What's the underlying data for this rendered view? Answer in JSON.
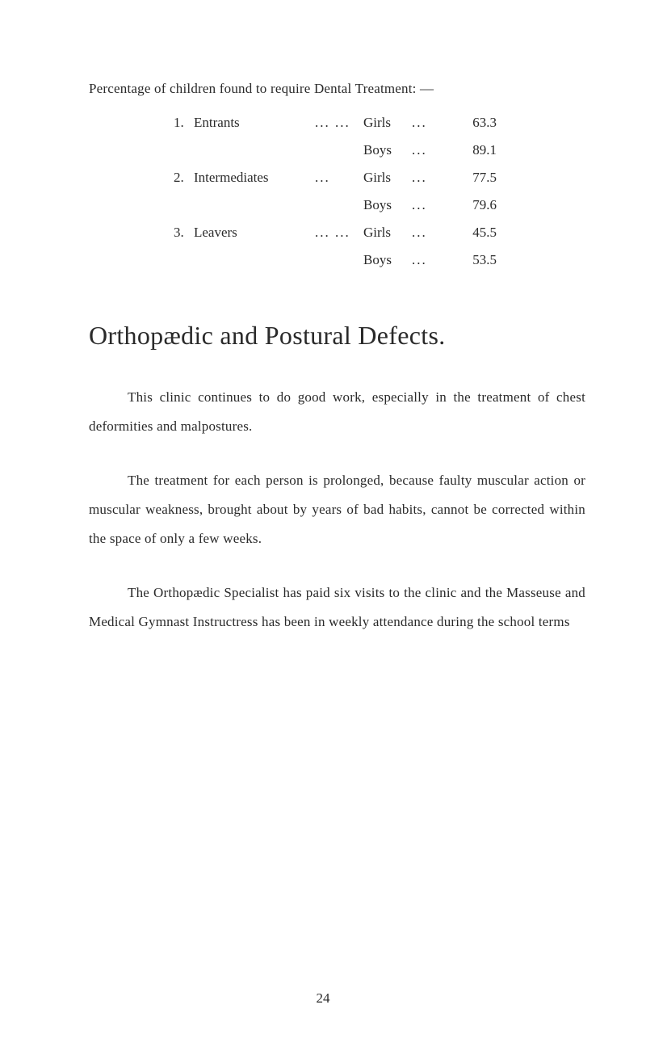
{
  "intro": "Percentage of children found to require Dental Treatment: —",
  "table": {
    "rows": [
      {
        "num": "1.",
        "category": "Entrants",
        "dots1": "...  ...",
        "gender": "Girls",
        "dots2": "...",
        "value": "63.3"
      },
      {
        "num": "",
        "category": "",
        "dots1": "",
        "gender": "Boys",
        "dots2": "...",
        "value": "89.1"
      },
      {
        "num": "2.",
        "category": "Intermediates",
        "dots1": "...",
        "gender": "Girls",
        "dots2": "...",
        "value": "77.5"
      },
      {
        "num": "",
        "category": "",
        "dots1": "",
        "gender": "Boys",
        "dots2": "...",
        "value": "79.6"
      },
      {
        "num": "3.",
        "category": "Leavers",
        "dots1": "...  ...",
        "gender": "Girls",
        "dots2": "...",
        "value": "45.5"
      },
      {
        "num": "",
        "category": "",
        "dots1": "",
        "gender": "Boys",
        "dots2": "...",
        "value": "53.5"
      }
    ]
  },
  "sectionTitle": "Orthopædic and Postural Defects.",
  "paragraphs": {
    "p1": "This clinic continues to do good work, especially in the treatment of chest deformities and malpostures.",
    "p2": "The treatment for each person is prolonged, because faulty muscular action or muscular weakness, brought about by years of bad habits, cannot be corrected within the space of only a few weeks.",
    "p3": "The Orthopædic Specialist has paid six visits to the clinic and the Masseuse and Medical Gymnast Instructress has been in weekly attendance during the school terms"
  },
  "pageNumber": "24"
}
